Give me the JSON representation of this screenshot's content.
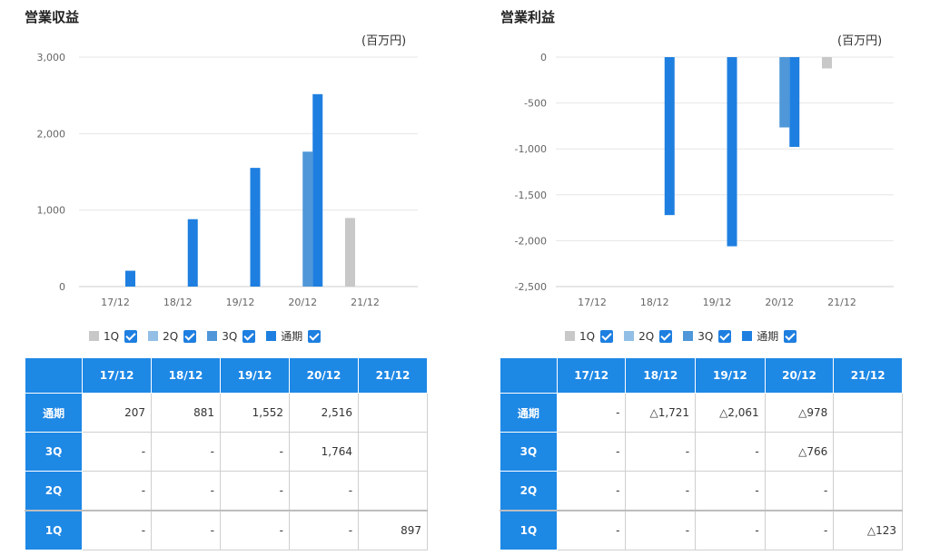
{
  "unit_label": "(百万円)",
  "legend": [
    {
      "label": "1Q",
      "color": "#c8c8c8"
    },
    {
      "label": "2Q",
      "color": "#93bfe6"
    },
    {
      "label": "3Q",
      "color": "#4f97d8"
    },
    {
      "label": "通期",
      "color": "#1e7fe0"
    }
  ],
  "chart_data": [
    {
      "type": "bar",
      "title": "営業収益",
      "categories": [
        "17/12",
        "18/12",
        "19/12",
        "20/12",
        "21/12"
      ],
      "yticks": [
        "3,000",
        "2,000",
        "1,000",
        "0"
      ],
      "ylim": [
        0,
        3000
      ],
      "grid": true,
      "series": [
        {
          "name": "1Q",
          "values": [
            null,
            null,
            null,
            null,
            897
          ]
        },
        {
          "name": "2Q",
          "values": [
            null,
            null,
            null,
            null,
            null
          ]
        },
        {
          "name": "3Q",
          "values": [
            null,
            null,
            null,
            1764,
            null
          ]
        },
        {
          "name": "通期",
          "values": [
            207,
            881,
            1552,
            2516,
            null
          ]
        }
      ]
    },
    {
      "type": "bar",
      "title": "営業利益",
      "categories": [
        "17/12",
        "18/12",
        "19/12",
        "20/12",
        "21/12"
      ],
      "yticks": [
        "0",
        "-500",
        "-1,000",
        "-1,500",
        "-2,000",
        "-2,500"
      ],
      "ylim": [
        -2500,
        0
      ],
      "grid": true,
      "series": [
        {
          "name": "1Q",
          "values": [
            null,
            null,
            null,
            null,
            -123
          ]
        },
        {
          "name": "2Q",
          "values": [
            null,
            null,
            null,
            null,
            null
          ]
        },
        {
          "name": "3Q",
          "values": [
            null,
            null,
            null,
            -766,
            null
          ]
        },
        {
          "name": "通期",
          "values": [
            null,
            -1721,
            -2061,
            -978,
            null
          ]
        }
      ]
    }
  ],
  "tables": [
    {
      "headers": [
        "",
        "17/12",
        "18/12",
        "19/12",
        "20/12",
        "21/12"
      ],
      "rows": [
        {
          "label": "通期",
          "cells": [
            "207",
            "881",
            "1,552",
            "2,516",
            ""
          ]
        },
        {
          "label": "3Q",
          "cells": [
            "-",
            "-",
            "-",
            "1,764",
            ""
          ]
        },
        {
          "label": "2Q",
          "cells": [
            "-",
            "-",
            "-",
            "-",
            ""
          ]
        },
        {
          "label": "1Q",
          "cells": [
            "-",
            "-",
            "-",
            "-",
            "897"
          ]
        }
      ]
    },
    {
      "headers": [
        "",
        "17/12",
        "18/12",
        "19/12",
        "20/12",
        "21/12"
      ],
      "rows": [
        {
          "label": "通期",
          "cells": [
            "-",
            "△1,721",
            "△2,061",
            "△978",
            ""
          ]
        },
        {
          "label": "3Q",
          "cells": [
            "-",
            "-",
            "-",
            "△766",
            ""
          ]
        },
        {
          "label": "2Q",
          "cells": [
            "-",
            "-",
            "-",
            "-",
            ""
          ]
        },
        {
          "label": "1Q",
          "cells": [
            "-",
            "-",
            "-",
            "-",
            "△123"
          ]
        }
      ]
    }
  ]
}
